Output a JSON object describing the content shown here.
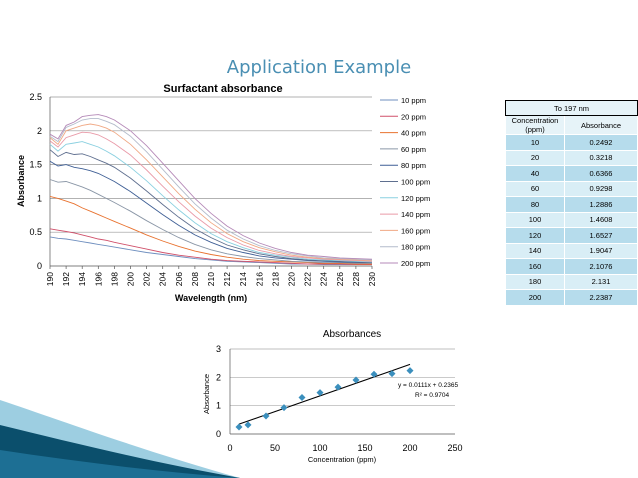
{
  "slide_title": "Application Example",
  "colors": {
    "title": "#4a8fb3",
    "table_header": "#e6f3f8",
    "table_row_a": "#b6dcec",
    "table_row_b": "#d9eef6",
    "marker": "#3b8fbd",
    "swoosh_dark": "#0b4f6c",
    "swoosh_light": "#4da6c8"
  },
  "chart_data": [
    {
      "type": "line",
      "title": "Surfactant absorbance",
      "xlabel": "Wavelength (nm)",
      "ylabel": "Absorbance",
      "xlim": [
        190,
        230
      ],
      "ylim": [
        0,
        2.5
      ],
      "x_ticks": [
        "190",
        "192",
        "194",
        "196",
        "198",
        "200",
        "202",
        "204",
        "206",
        "208",
        "210",
        "212",
        "214",
        "216",
        "218",
        "220",
        "222",
        "224",
        "226",
        "228",
        "230"
      ],
      "y_ticks": [
        "0",
        "0.5",
        "1",
        "1.5",
        "2",
        "2.5"
      ],
      "grid": true,
      "legend_position": "right",
      "x": [
        190,
        191,
        192,
        193,
        194,
        195,
        196,
        197,
        198,
        200,
        202,
        204,
        206,
        208,
        210,
        212,
        214,
        216,
        218,
        220,
        222,
        224,
        226,
        228,
        230
      ],
      "series": [
        {
          "name": "10 ppm",
          "color": "#6f8fbf",
          "values": [
            0.43,
            0.41,
            0.4,
            0.38,
            0.36,
            0.34,
            0.32,
            0.3,
            0.28,
            0.24,
            0.2,
            0.17,
            0.14,
            0.11,
            0.09,
            0.07,
            0.06,
            0.05,
            0.04,
            0.03,
            0.03,
            0.02,
            0.02,
            0.02,
            0.02
          ]
        },
        {
          "name": "20 ppm",
          "color": "#d0506a",
          "values": [
            0.55,
            0.53,
            0.51,
            0.49,
            0.46,
            0.43,
            0.4,
            0.38,
            0.35,
            0.3,
            0.25,
            0.2,
            0.16,
            0.13,
            0.1,
            0.08,
            0.07,
            0.06,
            0.05,
            0.04,
            0.03,
            0.03,
            0.03,
            0.02,
            0.02
          ]
        },
        {
          "name": "40 ppm",
          "color": "#e8722f",
          "values": [
            1.03,
            1.0,
            0.96,
            0.92,
            0.86,
            0.81,
            0.76,
            0.71,
            0.66,
            0.56,
            0.46,
            0.37,
            0.29,
            0.22,
            0.17,
            0.13,
            0.1,
            0.08,
            0.07,
            0.06,
            0.05,
            0.04,
            0.04,
            0.03,
            0.03
          ]
        },
        {
          "name": "60 ppm",
          "color": "#8a96a6",
          "values": [
            1.28,
            1.24,
            1.25,
            1.21,
            1.17,
            1.12,
            1.06,
            1.0,
            0.94,
            0.81,
            0.67,
            0.54,
            0.42,
            0.32,
            0.24,
            0.18,
            0.14,
            0.11,
            0.09,
            0.07,
            0.06,
            0.05,
            0.05,
            0.04,
            0.04
          ]
        },
        {
          "name": "80 ppm",
          "color": "#3f5f95",
          "values": [
            1.55,
            1.48,
            1.5,
            1.46,
            1.44,
            1.41,
            1.37,
            1.31,
            1.25,
            1.1,
            0.93,
            0.76,
            0.6,
            0.46,
            0.35,
            0.26,
            0.2,
            0.15,
            0.12,
            0.1,
            0.08,
            0.07,
            0.06,
            0.05,
            0.05
          ]
        },
        {
          "name": "100 ppm",
          "color": "#5f6f8f",
          "values": [
            1.72,
            1.62,
            1.68,
            1.65,
            1.66,
            1.62,
            1.57,
            1.52,
            1.46,
            1.3,
            1.11,
            0.91,
            0.72,
            0.55,
            0.42,
            0.31,
            0.24,
            0.18,
            0.14,
            0.11,
            0.09,
            0.08,
            0.07,
            0.06,
            0.05
          ]
        },
        {
          "name": "120 ppm",
          "color": "#8ad0e0",
          "values": [
            1.8,
            1.7,
            1.8,
            1.82,
            1.84,
            1.8,
            1.76,
            1.7,
            1.63,
            1.46,
            1.26,
            1.04,
            0.83,
            0.64,
            0.48,
            0.36,
            0.27,
            0.2,
            0.16,
            0.13,
            0.1,
            0.09,
            0.08,
            0.07,
            0.06
          ]
        },
        {
          "name": "140 ppm",
          "color": "#e99aa8",
          "values": [
            1.85,
            1.76,
            1.9,
            1.94,
            1.98,
            1.97,
            1.94,
            1.88,
            1.81,
            1.64,
            1.42,
            1.18,
            0.95,
            0.74,
            0.56,
            0.42,
            0.31,
            0.23,
            0.18,
            0.14,
            0.12,
            0.1,
            0.09,
            0.08,
            0.07
          ]
        },
        {
          "name": "160 ppm",
          "color": "#f0a884",
          "values": [
            1.9,
            1.8,
            2.0,
            2.04,
            2.08,
            2.1,
            2.08,
            2.04,
            1.98,
            1.8,
            1.57,
            1.32,
            1.07,
            0.84,
            0.64,
            0.48,
            0.36,
            0.27,
            0.21,
            0.16,
            0.13,
            0.11,
            0.1,
            0.09,
            0.08
          ]
        },
        {
          "name": "180 ppm",
          "color": "#b4bccb",
          "values": [
            1.92,
            1.84,
            2.05,
            2.1,
            2.16,
            2.18,
            2.18,
            2.14,
            2.09,
            1.92,
            1.69,
            1.43,
            1.17,
            0.92,
            0.71,
            0.53,
            0.4,
            0.3,
            0.23,
            0.18,
            0.15,
            0.12,
            0.11,
            0.1,
            0.09
          ]
        },
        {
          "name": "200 ppm",
          "color": "#b58ab8",
          "values": [
            1.95,
            1.88,
            2.08,
            2.13,
            2.21,
            2.23,
            2.24,
            2.21,
            2.16,
            2.0,
            1.78,
            1.52,
            1.26,
            1.0,
            0.78,
            0.59,
            0.45,
            0.34,
            0.26,
            0.2,
            0.16,
            0.14,
            0.12,
            0.11,
            0.1
          ]
        }
      ]
    },
    {
      "type": "scatter",
      "title": "Absorbances",
      "xlabel": "Concentration (ppm)",
      "ylabel": "Absorbance",
      "xlim": [
        0,
        250
      ],
      "ylim": [
        0,
        3
      ],
      "x_ticks": [
        "0",
        "50",
        "100",
        "150",
        "200",
        "250"
      ],
      "y_ticks": [
        "0",
        "1",
        "2",
        "3"
      ],
      "grid": true,
      "x": [
        10,
        20,
        40,
        60,
        80,
        100,
        120,
        140,
        160,
        180,
        200
      ],
      "y": [
        0.2492,
        0.3218,
        0.6366,
        0.9298,
        1.2886,
        1.4608,
        1.6527,
        1.9047,
        2.1076,
        2.131,
        2.2387
      ],
      "trendline": {
        "slope": 0.0111,
        "intercept": 0.2365,
        "x_range": [
          10,
          200
        ]
      },
      "equation": "y = 0.0111x + 0.2365",
      "r_squared": "R² = 0.9704"
    }
  ],
  "table": {
    "caption": "To 197 nm",
    "headers": [
      "Concentration (ppm)",
      "Absorbance"
    ],
    "rows": [
      [
        "10",
        "0.2492"
      ],
      [
        "20",
        "0.3218"
      ],
      [
        "40",
        "0.6366"
      ],
      [
        "60",
        "0.9298"
      ],
      [
        "80",
        "1.2886"
      ],
      [
        "100",
        "1.4608"
      ],
      [
        "120",
        "1.6527"
      ],
      [
        "140",
        "1.9047"
      ],
      [
        "160",
        "2.1076"
      ],
      [
        "180",
        "2.131"
      ],
      [
        "200",
        "2.2387"
      ]
    ]
  }
}
